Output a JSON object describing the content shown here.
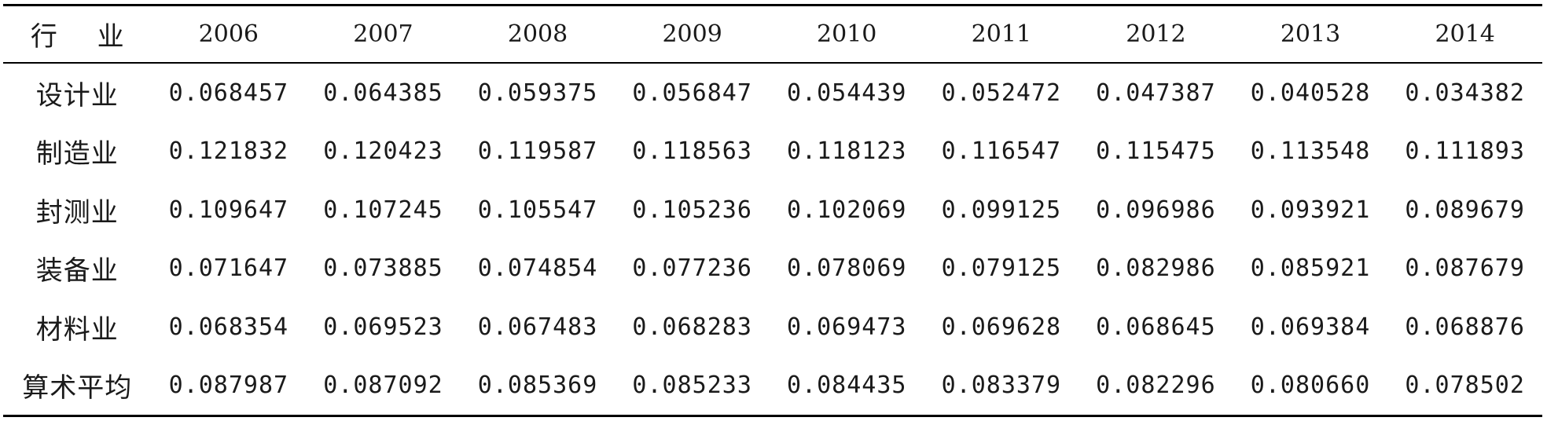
{
  "table": {
    "header": [
      "行 业",
      "2006",
      "2007",
      "2008",
      "2009",
      "2010",
      "2011",
      "2012",
      "2013",
      "2014"
    ],
    "rows": [
      {
        "label": "设计业",
        "values": [
          "0.068457",
          "0.064385",
          "0.059375",
          "0.056847",
          "0.054439",
          "0.052472",
          "0.047387",
          "0.040528",
          "0.034382"
        ]
      },
      {
        "label": "制造业",
        "values": [
          "0.121832",
          "0.120423",
          "0.119587",
          "0.118563",
          "0.118123",
          "0.116547",
          "0.115475",
          "0.113548",
          "0.111893"
        ]
      },
      {
        "label": "封测业",
        "values": [
          "0.109647",
          "0.107245",
          "0.105547",
          "0.105236",
          "0.102069",
          "0.099125",
          "0.096986",
          "0.093921",
          "0.089679"
        ]
      },
      {
        "label": "装备业",
        "values": [
          "0.071647",
          "0.073885",
          "0.074854",
          "0.077236",
          "0.078069",
          "0.079125",
          "0.082986",
          "0.085921",
          "0.087679"
        ]
      },
      {
        "label": "材料业",
        "values": [
          "0.068354",
          "0.069523",
          "0.067483",
          "0.068283",
          "0.069473",
          "0.069628",
          "0.068645",
          "0.069384",
          "0.068876"
        ]
      },
      {
        "label": "算术平均",
        "values": [
          "0.087987",
          "0.087092",
          "0.085369",
          "0.085233",
          "0.084435",
          "0.083379",
          "0.082296",
          "0.080660",
          "0.078502"
        ]
      }
    ]
  }
}
